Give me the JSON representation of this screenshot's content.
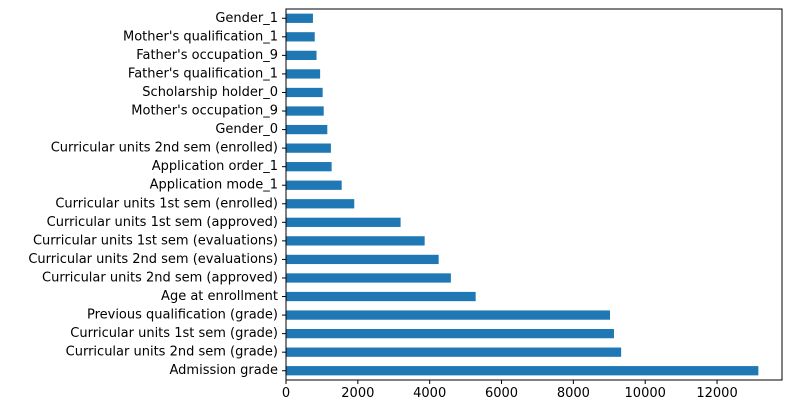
{
  "chart_data": {
    "type": "bar",
    "orientation": "horizontal",
    "categories": [
      "Admission grade",
      "Curricular units 2nd sem (grade)",
      "Curricular units 1st sem (grade)",
      "Previous qualification (grade)",
      "Age at enrollment",
      "Curricular units 2nd sem (approved)",
      "Curricular units 2nd sem (evaluations)",
      "Curricular units 1st sem (evaluations)",
      "Curricular units 1st sem (approved)",
      "Curricular units 1st sem (enrolled)",
      "Application mode_1",
      "Application order_1",
      "Curricular units 2nd sem (enrolled)",
      "Gender_0",
      "Mother's occupation_9",
      "Scholarship holder_0",
      "Father's qualification_1",
      "Father's occupation_9",
      "Mother's qualification_1",
      "Gender_1"
    ],
    "values": [
      13150,
      9330,
      9130,
      9020,
      5280,
      4590,
      4250,
      3860,
      3190,
      1900,
      1550,
      1270,
      1250,
      1150,
      1050,
      1020,
      950,
      850,
      800,
      750
    ],
    "xticks": [
      0,
      2000,
      4000,
      6000,
      8000,
      10000,
      12000
    ],
    "xlim": [
      0,
      13808
    ],
    "bar_color": "#1f77b4",
    "title": "",
    "xlabel": "",
    "ylabel": "",
    "grid": false,
    "legend": "none"
  }
}
